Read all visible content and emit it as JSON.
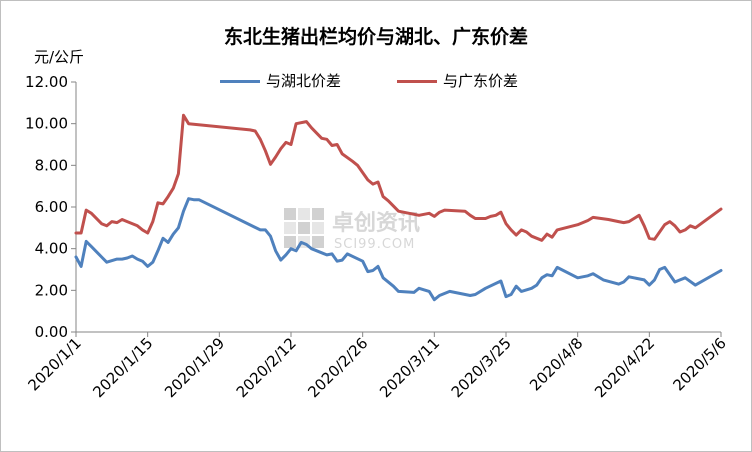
{
  "chart_data": {
    "type": "line",
    "title": "东北生猪出栏均价与湖北、广东价差",
    "ylabel": "元/公斤",
    "ylim": [
      0,
      12
    ],
    "yticks": [
      "0.00",
      "2.00",
      "4.00",
      "6.00",
      "8.00",
      "10.00",
      "12.00"
    ],
    "xlim": [
      "2020/1/1",
      "2020/5/6"
    ],
    "xticks": [
      "2020/1/1",
      "2020/1/15",
      "2020/1/29",
      "2020/2/12",
      "2020/2/26",
      "2020/3/11",
      "2020/3/25",
      "2020/4/8",
      "2020/4/22",
      "2020/5/6"
    ],
    "grid": false,
    "legend_position": "top",
    "series": [
      {
        "name": "与湖北价差",
        "color": "#4f81bd",
        "points": [
          [
            "2020/1/1",
            3.6
          ],
          [
            "2020/1/2",
            3.15
          ],
          [
            "2020/1/3",
            4.35
          ],
          [
            "2020/1/4",
            4.1
          ],
          [
            "2020/1/6",
            3.6
          ],
          [
            "2020/1/7",
            3.35
          ],
          [
            "2020/1/9",
            3.5
          ],
          [
            "2020/1/10",
            3.5
          ],
          [
            "2020/1/11",
            3.55
          ],
          [
            "2020/1/12",
            3.65
          ],
          [
            "2020/1/13",
            3.5
          ],
          [
            "2020/1/14",
            3.4
          ],
          [
            "2020/1/15",
            3.15
          ],
          [
            "2020/1/16",
            3.35
          ],
          [
            "2020/1/17",
            3.9
          ],
          [
            "2020/1/18",
            4.5
          ],
          [
            "2020/1/19",
            4.3
          ],
          [
            "2020/1/20",
            4.7
          ],
          [
            "2020/1/21",
            5.0
          ],
          [
            "2020/1/22",
            5.8
          ],
          [
            "2020/1/23",
            6.4
          ],
          [
            "2020/1/24",
            6.35
          ],
          [
            "2020/1/25",
            6.35
          ],
          [
            "2020/2/6",
            4.9
          ],
          [
            "2020/2/7",
            4.9
          ],
          [
            "2020/2/8",
            4.6
          ],
          [
            "2020/2/9",
            3.9
          ],
          [
            "2020/2/10",
            3.45
          ],
          [
            "2020/2/11",
            3.7
          ],
          [
            "2020/2/12",
            4.0
          ],
          [
            "2020/2/13",
            3.9
          ],
          [
            "2020/2/14",
            4.3
          ],
          [
            "2020/2/15",
            4.2
          ],
          [
            "2020/2/16",
            4.0
          ],
          [
            "2020/2/18",
            3.8
          ],
          [
            "2020/2/19",
            3.7
          ],
          [
            "2020/2/20",
            3.75
          ],
          [
            "2020/2/21",
            3.4
          ],
          [
            "2020/2/22",
            3.45
          ],
          [
            "2020/2/23",
            3.75
          ],
          [
            "2020/2/26",
            3.4
          ],
          [
            "2020/2/27",
            2.9
          ],
          [
            "2020/2/28",
            2.95
          ],
          [
            "2020/2/29",
            3.15
          ],
          [
            "2020/3/1",
            2.6
          ],
          [
            "2020/3/3",
            2.2
          ],
          [
            "2020/3/4",
            1.95
          ],
          [
            "2020/3/7",
            1.9
          ],
          [
            "2020/3/8",
            2.1
          ],
          [
            "2020/3/10",
            1.95
          ],
          [
            "2020/3/11",
            1.55
          ],
          [
            "2020/3/12",
            1.75
          ],
          [
            "2020/3/14",
            1.95
          ],
          [
            "2020/3/18",
            1.75
          ],
          [
            "2020/3/19",
            1.8
          ],
          [
            "2020/3/21",
            2.1
          ],
          [
            "2020/3/24",
            2.45
          ],
          [
            "2020/3/25",
            1.7
          ],
          [
            "2020/3/26",
            1.8
          ],
          [
            "2020/3/27",
            2.2
          ],
          [
            "2020/3/28",
            1.95
          ],
          [
            "2020/3/30",
            2.1
          ],
          [
            "2020/3/31",
            2.25
          ],
          [
            "2020/4/1",
            2.6
          ],
          [
            "2020/4/2",
            2.75
          ],
          [
            "2020/4/3",
            2.7
          ],
          [
            "2020/4/4",
            3.1
          ],
          [
            "2020/4/8",
            2.6
          ],
          [
            "2020/4/10",
            2.7
          ],
          [
            "2020/4/11",
            2.8
          ],
          [
            "2020/4/13",
            2.5
          ],
          [
            "2020/4/16",
            2.3
          ],
          [
            "2020/4/17",
            2.4
          ],
          [
            "2020/4/18",
            2.65
          ],
          [
            "2020/4/20",
            2.55
          ],
          [
            "2020/4/21",
            2.5
          ],
          [
            "2020/4/22",
            2.25
          ],
          [
            "2020/4/23",
            2.5
          ],
          [
            "2020/4/24",
            3.0
          ],
          [
            "2020/4/25",
            3.1
          ],
          [
            "2020/4/27",
            2.4
          ],
          [
            "2020/4/28",
            2.5
          ],
          [
            "2020/4/29",
            2.6
          ],
          [
            "2020/5/1",
            2.25
          ],
          [
            "2020/5/6",
            2.95
          ]
        ]
      },
      {
        "name": "与广东价差",
        "color": "#c0504d",
        "points": [
          [
            "2020/1/1",
            4.75
          ],
          [
            "2020/1/2",
            4.75
          ],
          [
            "2020/1/3",
            5.85
          ],
          [
            "2020/1/4",
            5.7
          ],
          [
            "2020/1/6",
            5.2
          ],
          [
            "2020/1/7",
            5.1
          ],
          [
            "2020/1/8",
            5.3
          ],
          [
            "2020/1/9",
            5.25
          ],
          [
            "2020/1/10",
            5.4
          ],
          [
            "2020/1/11",
            5.3
          ],
          [
            "2020/1/13",
            5.1
          ],
          [
            "2020/1/14",
            4.9
          ],
          [
            "2020/1/15",
            4.75
          ],
          [
            "2020/1/16",
            5.3
          ],
          [
            "2020/1/17",
            6.2
          ],
          [
            "2020/1/18",
            6.15
          ],
          [
            "2020/1/19",
            6.5
          ],
          [
            "2020/1/20",
            6.9
          ],
          [
            "2020/1/21",
            7.6
          ],
          [
            "2020/1/22",
            10.4
          ],
          [
            "2020/1/23",
            10.0
          ],
          [
            "2020/2/4",
            9.7
          ],
          [
            "2020/2/5",
            9.65
          ],
          [
            "2020/2/6",
            9.25
          ],
          [
            "2020/2/7",
            8.7
          ],
          [
            "2020/2/8",
            8.05
          ],
          [
            "2020/2/9",
            8.4
          ],
          [
            "2020/2/10",
            8.8
          ],
          [
            "2020/2/11",
            9.1
          ],
          [
            "2020/2/12",
            9.0
          ],
          [
            "2020/2/13",
            10.0
          ],
          [
            "2020/2/15",
            10.1
          ],
          [
            "2020/2/16",
            9.8
          ],
          [
            "2020/2/18",
            9.3
          ],
          [
            "2020/2/19",
            9.25
          ],
          [
            "2020/2/20",
            8.95
          ],
          [
            "2020/2/21",
            9.0
          ],
          [
            "2020/2/22",
            8.55
          ],
          [
            "2020/2/24",
            8.2
          ],
          [
            "2020/2/25",
            8.0
          ],
          [
            "2020/2/27",
            7.3
          ],
          [
            "2020/2/28",
            7.1
          ],
          [
            "2020/2/29",
            7.2
          ],
          [
            "2020/3/1",
            6.5
          ],
          [
            "2020/3/2",
            6.3
          ],
          [
            "2020/3/4",
            5.8
          ],
          [
            "2020/3/8",
            5.6
          ],
          [
            "2020/3/10",
            5.7
          ],
          [
            "2020/3/11",
            5.55
          ],
          [
            "2020/3/12",
            5.75
          ],
          [
            "2020/3/13",
            5.85
          ],
          [
            "2020/3/17",
            5.8
          ],
          [
            "2020/3/18",
            5.6
          ],
          [
            "2020/3/19",
            5.45
          ],
          [
            "2020/3/21",
            5.45
          ],
          [
            "2020/3/22",
            5.55
          ],
          [
            "2020/3/23",
            5.6
          ],
          [
            "2020/3/24",
            5.75
          ],
          [
            "2020/3/25",
            5.2
          ],
          [
            "2020/3/26",
            4.9
          ],
          [
            "2020/3/27",
            4.65
          ],
          [
            "2020/3/28",
            4.9
          ],
          [
            "2020/3/29",
            4.8
          ],
          [
            "2020/3/30",
            4.6
          ],
          [
            "2020/4/1",
            4.4
          ],
          [
            "2020/4/2",
            4.7
          ],
          [
            "2020/4/3",
            4.55
          ],
          [
            "2020/4/4",
            4.9
          ],
          [
            "2020/4/8",
            5.15
          ],
          [
            "2020/4/10",
            5.35
          ],
          [
            "2020/4/11",
            5.5
          ],
          [
            "2020/4/14",
            5.4
          ],
          [
            "2020/4/16",
            5.3
          ],
          [
            "2020/4/17",
            5.25
          ],
          [
            "2020/4/18",
            5.3
          ],
          [
            "2020/4/20",
            5.6
          ],
          [
            "2020/4/21",
            5.1
          ],
          [
            "2020/4/22",
            4.5
          ],
          [
            "2020/4/23",
            4.45
          ],
          [
            "2020/4/24",
            4.8
          ],
          [
            "2020/4/25",
            5.15
          ],
          [
            "2020/4/26",
            5.3
          ],
          [
            "2020/4/27",
            5.1
          ],
          [
            "2020/4/28",
            4.8
          ],
          [
            "2020/4/29",
            4.9
          ],
          [
            "2020/4/30",
            5.1
          ],
          [
            "2020/5/1",
            5.0
          ],
          [
            "2020/5/6",
            5.9
          ]
        ]
      }
    ]
  },
  "watermark": {
    "cn": "卓创资讯",
    "en": "SCI99.COM",
    "color": "#b0b0b0"
  }
}
